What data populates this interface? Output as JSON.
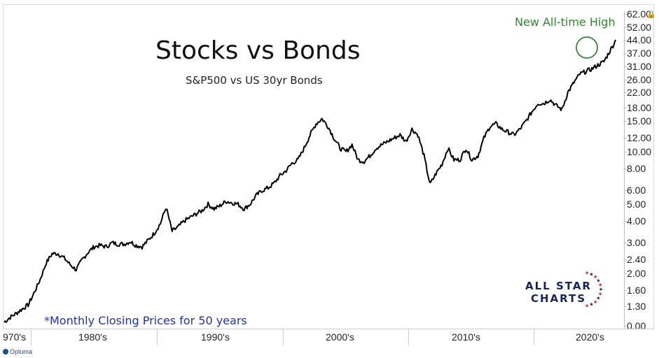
{
  "chart_data": {
    "type": "line",
    "title": "Stocks vs Bonds",
    "subtitle": "S&P500 vs US 30yr Bonds",
    "scale": "log",
    "x_range": [
      1970.0,
      2021.5
    ],
    "y_tick_labels": [
      "0.00",
      "1.30",
      "1.60",
      "2.00",
      "2.40",
      "3.00",
      "4.00",
      "5.00",
      "6.00",
      "8.00",
      "10.00",
      "12.00",
      "15.00",
      "18.00",
      "22.00",
      "26.00",
      "31.00",
      "37.00",
      "44.00",
      "52.00",
      "62.00"
    ],
    "x_tick_labels": [
      "970's",
      "1980's",
      "1990's",
      "2000's",
      "2010's",
      "2020's"
    ],
    "series": [
      {
        "x": [
          1970.0,
          1970.5,
          1971.0,
          1971.5,
          1972.0,
          1972.5,
          1973.0,
          1973.5,
          1974.0,
          1974.5,
          1975.0,
          1975.5,
          1976.0,
          1976.5,
          1977.0,
          1977.5,
          1978.0,
          1978.5,
          1979.0,
          1979.5,
          1980.0,
          1980.5,
          1981.0,
          1981.5,
          1982.0,
          1982.5,
          1983.0,
          1983.5,
          1984.0,
          1984.5,
          1985.0,
          1985.5,
          1986.0,
          1986.5,
          1987.0,
          1987.5,
          1988.0,
          1988.5,
          1989.0,
          1989.5,
          1990.0,
          1990.5,
          1991.0,
          1991.5,
          1992.0,
          1992.5,
          1993.0,
          1993.5,
          1994.0,
          1994.5,
          1995.0,
          1995.5,
          1996.0,
          1996.5,
          1997.0,
          1997.5,
          1998.0,
          1998.5,
          1999.0,
          1999.5,
          2000.0,
          2000.5,
          2001.0,
          2001.5,
          2002.0,
          2002.5,
          2003.0,
          2003.5,
          2004.0,
          2004.5,
          2005.0,
          2005.5,
          2006.0,
          2006.5,
          2007.0,
          2007.5,
          2008.0,
          2008.5,
          2009.0,
          2009.5,
          2010.0,
          2010.5,
          2011.0,
          2011.5,
          2012.0,
          2012.5,
          2013.0,
          2013.5,
          2014.0,
          2014.5,
          2015.0,
          2015.5,
          2016.0,
          2016.5,
          2017.0,
          2017.5,
          2018.0,
          2018.5,
          2019.0,
          2019.5,
          2020.0,
          2020.5,
          2021.0
        ],
        "y": [
          1.05,
          1.12,
          1.18,
          1.25,
          1.32,
          1.55,
          1.85,
          2.3,
          2.6,
          2.6,
          2.45,
          2.25,
          2.1,
          2.4,
          2.65,
          2.85,
          2.9,
          2.85,
          3.0,
          2.95,
          2.95,
          3.05,
          2.9,
          2.85,
          3.1,
          3.4,
          3.85,
          4.8,
          3.5,
          3.7,
          4.0,
          4.2,
          4.4,
          4.6,
          5.0,
          4.7,
          4.9,
          5.2,
          5.1,
          5.0,
          4.7,
          5.0,
          5.6,
          6.0,
          6.2,
          6.6,
          7.3,
          7.8,
          8.6,
          9.0,
          10.5,
          12.5,
          14.5,
          15.5,
          14.0,
          12.0,
          10.5,
          10.0,
          11.0,
          9.0,
          8.8,
          9.5,
          10.5,
          11.0,
          11.5,
          12.0,
          12.5,
          11.5,
          13.5,
          12.5,
          9.5,
          6.5,
          7.5,
          8.5,
          10.5,
          9.0,
          9.0,
          10.5,
          9.0,
          9.5,
          12.0,
          14.0,
          14.5,
          13.5,
          13.0,
          12.5,
          13.5,
          15.0,
          17.0,
          19.0,
          19.0,
          20.0,
          18.5,
          17.5,
          22.0,
          25.0,
          28.0,
          29.0,
          30.0,
          31.5,
          33.0,
          38.0,
          44.0
        ]
      }
    ],
    "annotations": {
      "new_high": "New All-time High",
      "footnote": "*Monthly Closing Prices for 50 years"
    },
    "colors": {
      "line": "#000000",
      "annotation": "#2e8b2e",
      "footnote": "#1f2ecf"
    },
    "grid": false,
    "legend": "none"
  },
  "logo": {
    "line1": "ALL STAR",
    "line2": "CHARTS"
  },
  "brand": {
    "name": "Optuma"
  }
}
